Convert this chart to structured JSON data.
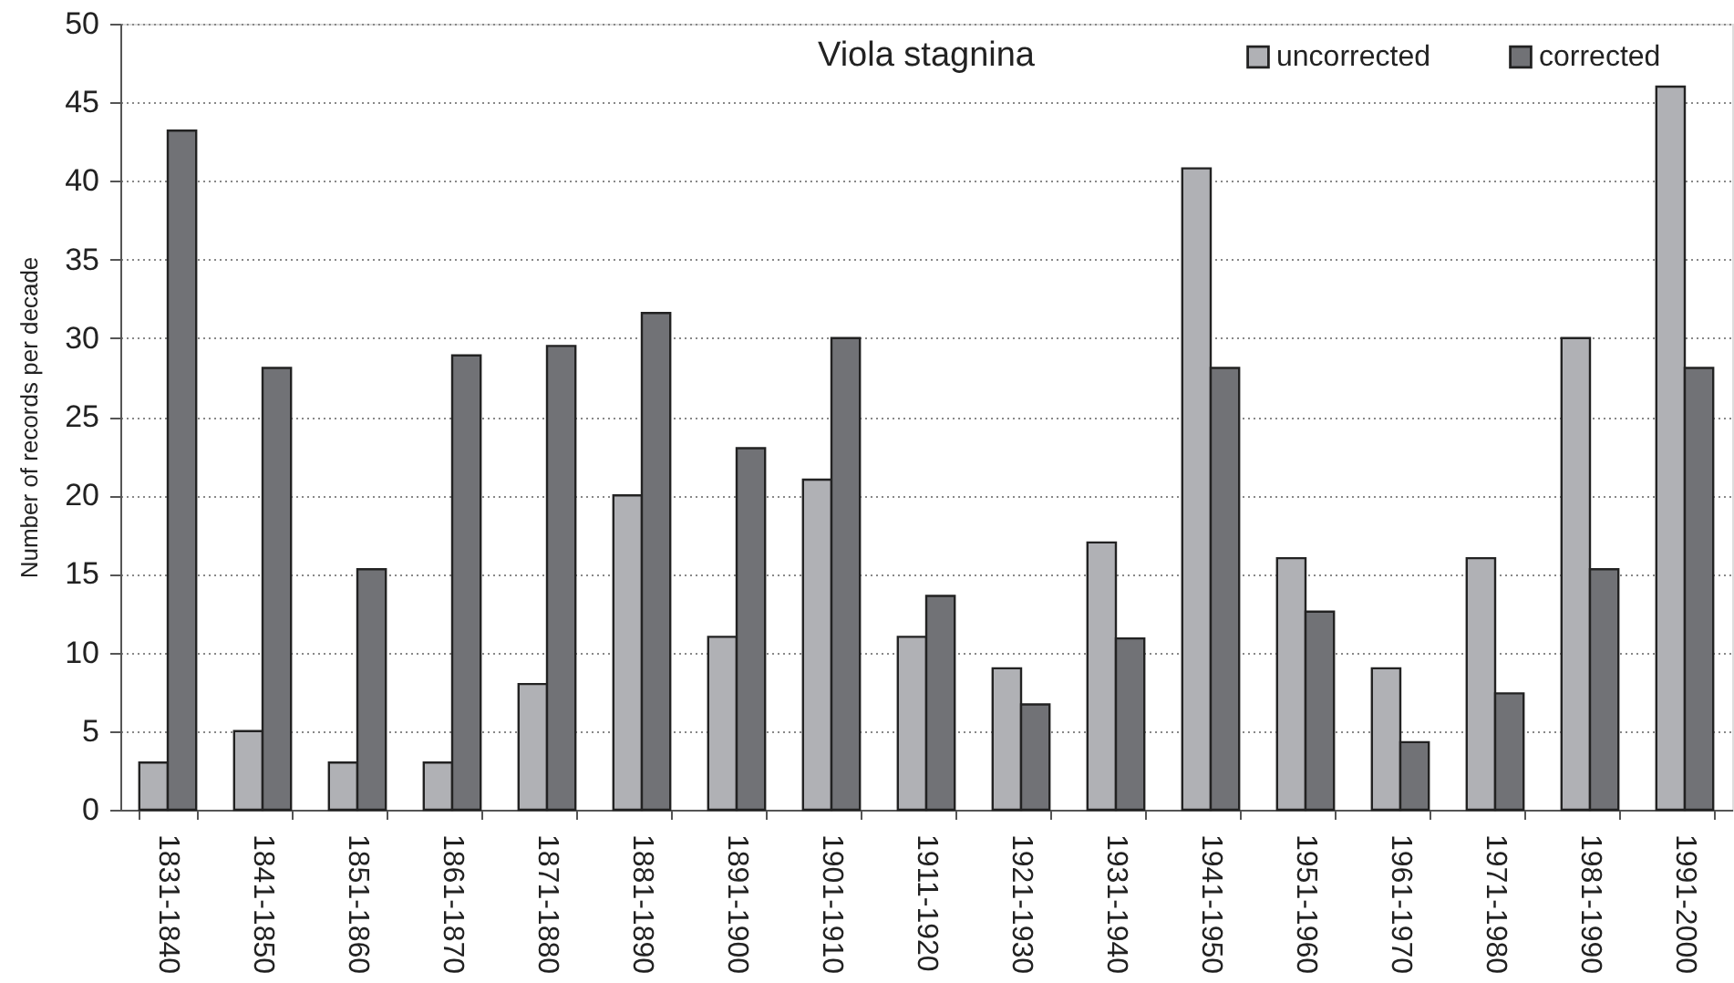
{
  "chart_data": {
    "type": "bar",
    "title": "Viola stagnina",
    "ylabel": "Number of records per decade",
    "categories": [
      "1831-1840",
      "1841-1850",
      "1851-1860",
      "1861-1870",
      "1871-1880",
      "1881-1890",
      "1891-1900",
      "1901-1910",
      "1911-1920",
      "1921-1930",
      "1931-1940",
      "1941-1950",
      "1951-1960",
      "1961-1970",
      "1971-1980",
      "1981-1990",
      "1991-2000"
    ],
    "series": [
      {
        "name": "uncorrected",
        "color": "#b0b1b5",
        "values": [
          3,
          5,
          3,
          3,
          8,
          20,
          11,
          21,
          11,
          9,
          17,
          40.8,
          16,
          9,
          16,
          30,
          46
        ]
      },
      {
        "name": "corrected",
        "color": "#717276",
        "values": [
          43.2,
          28.1,
          15.3,
          28.9,
          29.5,
          31.6,
          23.0,
          30,
          13.6,
          6.7,
          10.9,
          28.1,
          12.6,
          4.3,
          7.4,
          15.3,
          28.1
        ]
      }
    ],
    "ylim": [
      0,
      50
    ],
    "yticks": [
      0,
      5,
      10,
      15,
      20,
      25,
      30,
      35,
      40,
      45,
      50
    ],
    "grid": true,
    "legend": "top right"
  }
}
